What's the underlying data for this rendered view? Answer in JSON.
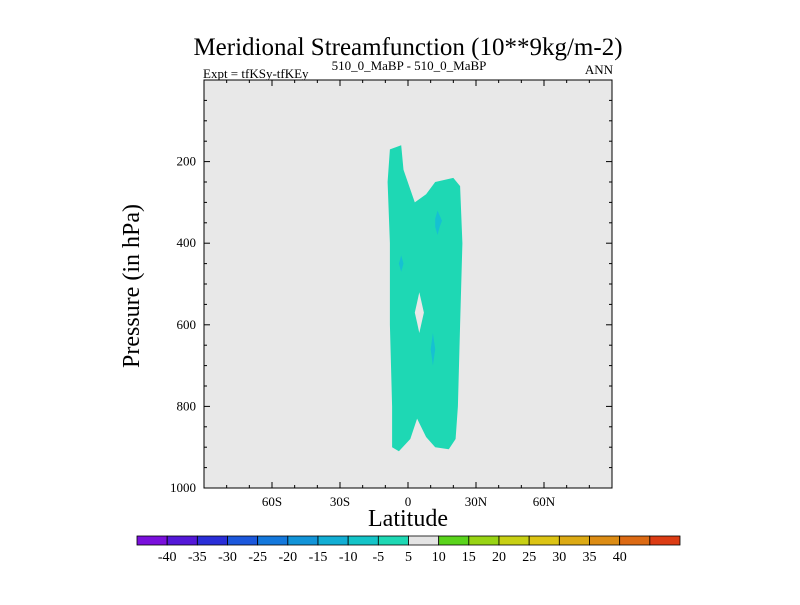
{
  "chart_data": {
    "type": "contour",
    "title": "Meridional Streamfunction (10**9kg/m-2)",
    "subtitle_left": "Expt = tfKSy-tfKEy",
    "subtitle_center": "510_0_MaBP - 510_0_MaBP",
    "subtitle_right": "ANN",
    "xlabel": "Latitude",
    "ylabel": "Pressure (in hPa)",
    "xlim": [
      -90,
      90
    ],
    "ylim": [
      1000,
      0
    ],
    "x_ticks": [
      {
        "value": -60,
        "label": "60S"
      },
      {
        "value": -30,
        "label": "30S"
      },
      {
        "value": 0,
        "label": "0"
      },
      {
        "value": 30,
        "label": "30N"
      },
      {
        "value": 60,
        "label": "60N"
      }
    ],
    "y_ticks": [
      {
        "value": 200,
        "label": "200"
      },
      {
        "value": 400,
        "label": "400"
      },
      {
        "value": 600,
        "label": "600"
      },
      {
        "value": 800,
        "label": "800"
      },
      {
        "value": 1000,
        "label": "1000"
      }
    ],
    "background_color": "#e8e8e8",
    "regions": [
      {
        "name": "main-contour-band",
        "level": "-5 to 0",
        "color": "#1ed8b4",
        "polygon": [
          [
            -8,
            170
          ],
          [
            -3,
            160
          ],
          [
            -2,
            220
          ],
          [
            3,
            300
          ],
          [
            8,
            280
          ],
          [
            12,
            250
          ],
          [
            20,
            240
          ],
          [
            23,
            260
          ],
          [
            24,
            400
          ],
          [
            23,
            600
          ],
          [
            22,
            800
          ],
          [
            21,
            880
          ],
          [
            18,
            905
          ],
          [
            12,
            900
          ],
          [
            8,
            875
          ],
          [
            4,
            830
          ],
          [
            1,
            880
          ],
          [
            -4,
            910
          ],
          [
            -7,
            900
          ],
          [
            -7,
            800
          ],
          [
            -8,
            600
          ],
          [
            -8,
            400
          ],
          [
            -9,
            250
          ]
        ]
      }
    ],
    "holes": [
      {
        "polygon": [
          [
            5,
            520
          ],
          [
            6,
            545
          ],
          [
            7,
            570
          ],
          [
            6,
            595
          ],
          [
            5,
            620
          ],
          [
            4,
            595
          ],
          [
            3,
            570
          ],
          [
            4,
            545
          ]
        ]
      }
    ],
    "small_patches": [
      {
        "color": "#16c0d2",
        "polygon": [
          [
            13,
            320
          ],
          [
            15,
            345
          ],
          [
            14,
            360
          ],
          [
            13,
            380
          ],
          [
            12,
            360
          ],
          [
            12,
            340
          ]
        ]
      },
      {
        "color": "#16c0d2",
        "polygon": [
          [
            -3,
            430
          ],
          [
            -2,
            450
          ],
          [
            -3,
            470
          ],
          [
            -4,
            450
          ]
        ]
      },
      {
        "color": "#16c0d2",
        "polygon": [
          [
            11,
            620
          ],
          [
            12,
            660
          ],
          [
            11,
            700
          ],
          [
            10,
            660
          ]
        ]
      }
    ],
    "colorbar": {
      "labels": [
        "-40",
        "-35",
        "-30",
        "-25",
        "-20",
        "-15",
        "-10",
        "-5",
        "5",
        "10",
        "15",
        "20",
        "25",
        "30",
        "35",
        "40"
      ],
      "colors": [
        "#7a10dc",
        "#5418d8",
        "#2a2ed8",
        "#1c58dc",
        "#1478dc",
        "#1294d8",
        "#12aed4",
        "#14c4c8",
        "#1ed8b4",
        "#e4e4e4",
        "#5ad41c",
        "#98d414",
        "#c8d014",
        "#dcc414",
        "#dcaa14",
        "#dc8c14",
        "#dc6a14",
        "#dc3c14"
      ]
    }
  }
}
